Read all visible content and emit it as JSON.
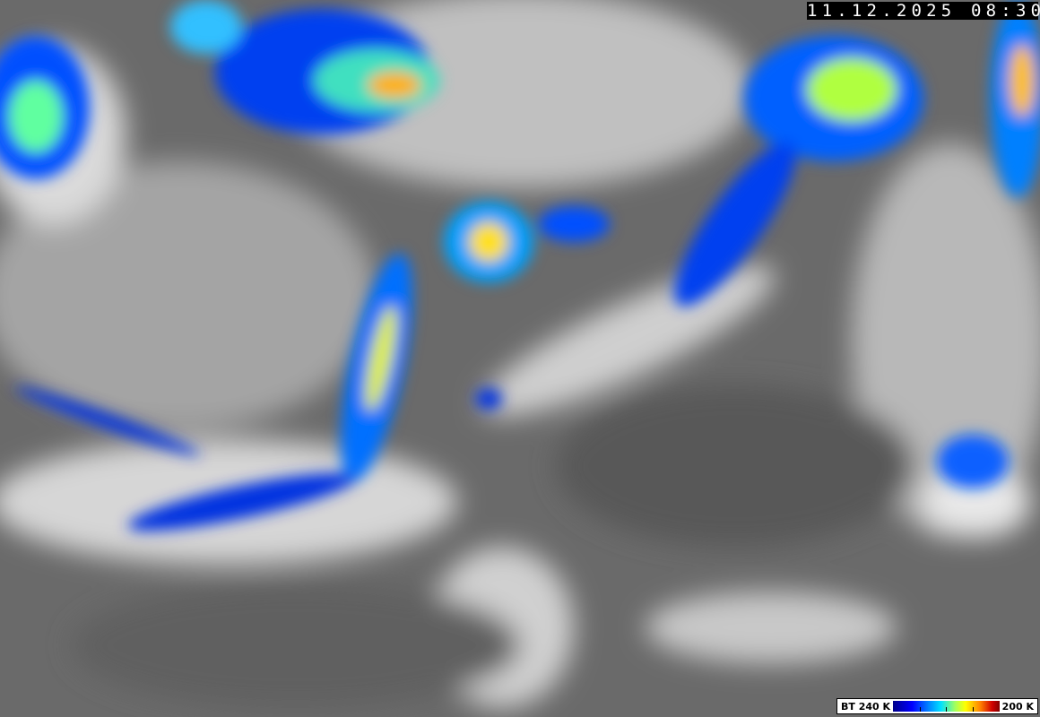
{
  "image_type": "infrared satellite brightness temperature",
  "timestamp": "11.12.2025 08:30",
  "legend": {
    "label_low": "BT 240 K",
    "label_high": "200 K",
    "colors": [
      "#00008a",
      "#0000ff",
      "#0080ff",
      "#00e0ff",
      "#a0ff60",
      "#ffff00",
      "#ff8000",
      "#d00000",
      "#800000"
    ]
  },
  "colors": {
    "background_gray": "#6e6e6e",
    "cloud_white": "#f0f0f0"
  }
}
